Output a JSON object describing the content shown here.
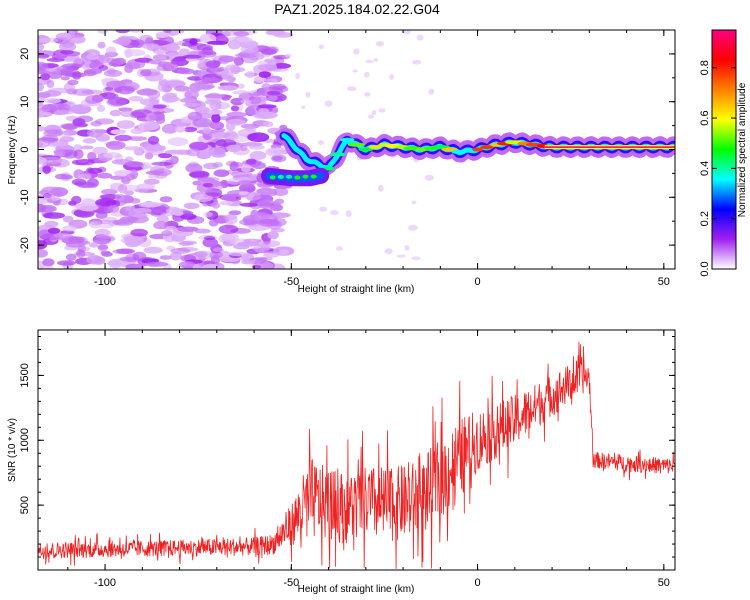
{
  "title": "PAZ1.2025.184.02.22.G04",
  "chart_data": [
    {
      "type": "heatmap",
      "name": "spectrogram",
      "xlabel": "Height of straight line (km)",
      "ylabel": "Frequency (Hz)",
      "xlim": [
        -118,
        53
      ],
      "ylim": [
        -25,
        25
      ],
      "xticks": [
        -100,
        -50,
        0,
        50
      ],
      "yticks": [
        -20,
        -10,
        0,
        10,
        20
      ],
      "colorbar": {
        "label": "Normalized spectral amplitude",
        "range": [
          0,
          0.95
        ],
        "ticks": [
          "0.0",
          "0.2",
          "0.4",
          "0.6",
          "0.8"
        ],
        "tick_values": [
          0,
          0.2,
          0.4,
          0.6,
          0.8
        ],
        "colors": [
          "#ffffff",
          "#a020f0",
          "#0000ff",
          "#00ffff",
          "#00ff00",
          "#ffff00",
          "#ff8000",
          "#ff0000",
          "#ff0080"
        ]
      },
      "ridge": {
        "x": [
          -52,
          -46,
          -40,
          -35,
          -30,
          -25,
          -20,
          -15,
          -10,
          -5,
          0,
          5,
          10,
          15,
          20,
          30,
          40,
          53
        ],
        "y": [
          3,
          -2,
          -4,
          2,
          0,
          1,
          0.5,
          0,
          0.5,
          -0.5,
          0,
          1,
          1.5,
          1,
          0.5,
          0.5,
          0.5,
          0.5
        ]
      },
      "lower_branch": {
        "x": [
          -56,
          -50,
          -45,
          -42
        ],
        "y": [
          -5.5,
          -6,
          -6,
          -5.5
        ]
      }
    },
    {
      "type": "line",
      "name": "snr",
      "xlabel": "Height of straight line (km)",
      "ylabel": "SNR (10 * v/v)",
      "xlim": [
        -118,
        53
      ],
      "ylim": [
        0,
        1850
      ],
      "xticks": [
        -100,
        -50,
        0,
        50
      ],
      "yticks": [
        500,
        1000,
        1500
      ],
      "color": "#ee2222",
      "envelope": {
        "x": [
          -118,
          -100,
          -80,
          -60,
          -55,
          -50,
          -45,
          -40,
          -35,
          -30,
          -25,
          -20,
          -15,
          -10,
          -5,
          0,
          10,
          20,
          28,
          30,
          31,
          40,
          53
        ],
        "mean": [
          150,
          160,
          170,
          180,
          200,
          350,
          550,
          500,
          480,
          520,
          500,
          520,
          550,
          700,
          850,
          1000,
          1150,
          1350,
          1500,
          1480,
          850,
          820,
          800
        ],
        "amplitude": [
          80,
          80,
          80,
          90,
          100,
          200,
          400,
          350,
          350,
          350,
          380,
          350,
          400,
          400,
          400,
          300,
          250,
          200,
          180,
          150,
          80,
          80,
          80
        ]
      }
    }
  ]
}
